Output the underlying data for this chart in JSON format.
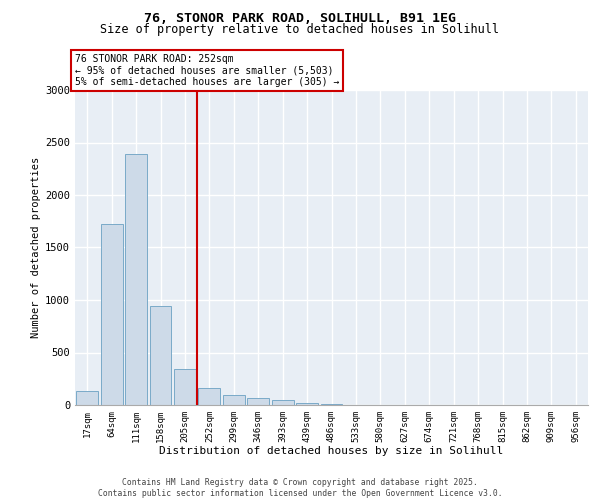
{
  "title_line1": "76, STONOR PARK ROAD, SOLIHULL, B91 1EG",
  "title_line2": "Size of property relative to detached houses in Solihull",
  "xlabel": "Distribution of detached houses by size in Solihull",
  "ylabel": "Number of detached properties",
  "categories": [
    "17sqm",
    "64sqm",
    "111sqm",
    "158sqm",
    "205sqm",
    "252sqm",
    "299sqm",
    "346sqm",
    "393sqm",
    "439sqm",
    "486sqm",
    "533sqm",
    "580sqm",
    "627sqm",
    "674sqm",
    "721sqm",
    "768sqm",
    "815sqm",
    "862sqm",
    "909sqm",
    "956sqm"
  ],
  "values": [
    130,
    1720,
    2390,
    940,
    340,
    165,
    95,
    65,
    45,
    15,
    5,
    0,
    0,
    0,
    0,
    0,
    0,
    0,
    0,
    0,
    0
  ],
  "bar_color": "#cddae8",
  "bar_edge_color": "#7aaac8",
  "vline_x_pos": 4.5,
  "vline_color": "#cc0000",
  "annotation_text": "76 STONOR PARK ROAD: 252sqm\n← 95% of detached houses are smaller (5,503)\n5% of semi-detached houses are larger (305) →",
  "annotation_box_edgecolor": "#cc0000",
  "ylim": [
    0,
    3000
  ],
  "yticks": [
    0,
    500,
    1000,
    1500,
    2000,
    2500,
    3000
  ],
  "bg_color": "#e8eef5",
  "footer_text": "Contains HM Land Registry data © Crown copyright and database right 2025.\nContains public sector information licensed under the Open Government Licence v3.0.",
  "grid_color": "#ffffff",
  "title_fontsize": 9.5,
  "subtitle_fontsize": 8.5
}
